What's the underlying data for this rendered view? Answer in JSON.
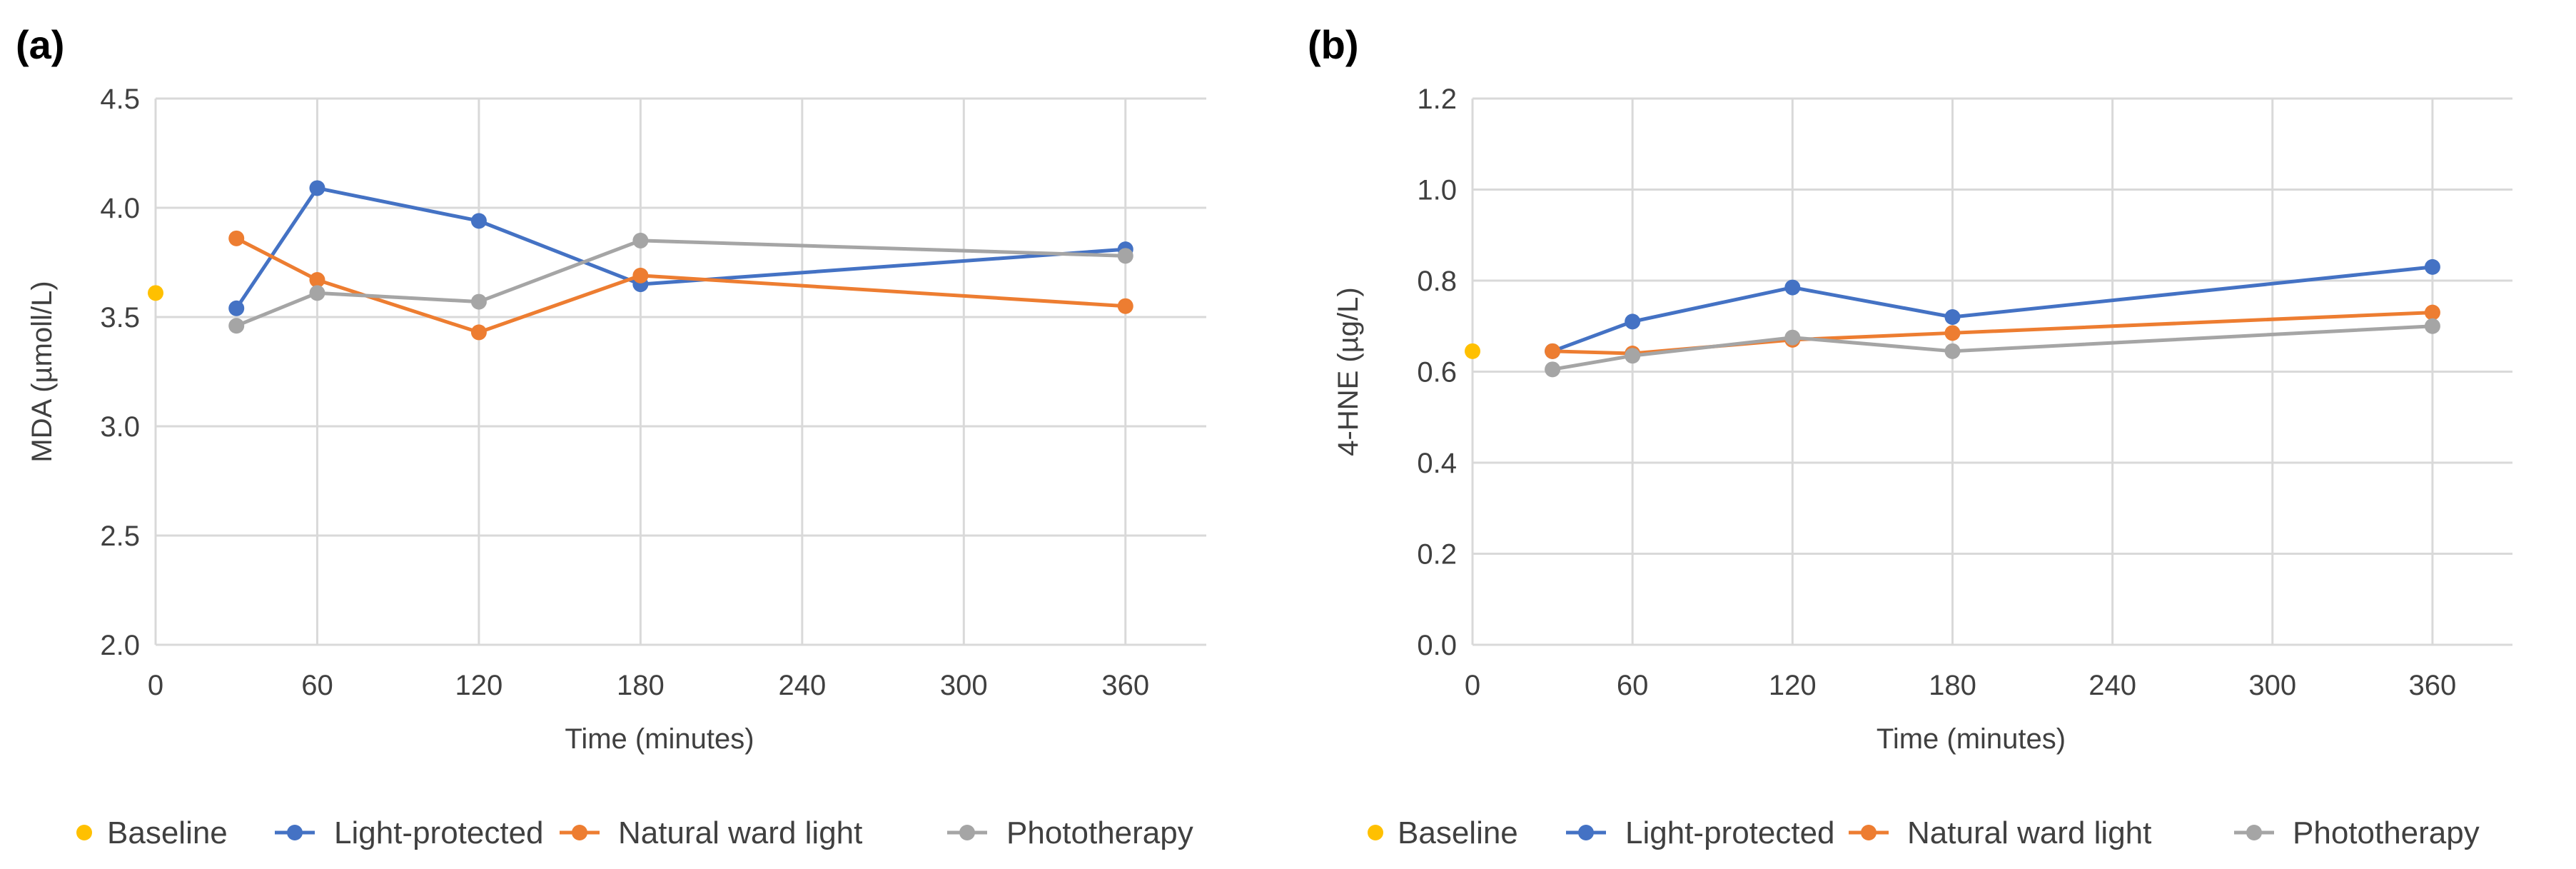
{
  "colors": {
    "baseline": "#FFC000",
    "light_protected": "#4472C4",
    "natural_ward_light": "#ED7D31",
    "phototherapy": "#A5A5A5",
    "grid": "#D9D9D9",
    "text": "#404040"
  },
  "chart_data": [
    {
      "panel_label": "(a)",
      "type": "line",
      "xlabel": "Time (minutes)",
      "ylabel": "MDA (µmoll/L)",
      "xlim": [
        0,
        390
      ],
      "ylim": [
        2.0,
        4.5
      ],
      "xticks": [
        0,
        60,
        120,
        180,
        240,
        300,
        360
      ],
      "yticks": [
        2.0,
        2.5,
        3.0,
        3.5,
        4.0,
        4.5
      ],
      "ytick_labels": [
        "2.0",
        "2.5",
        "3.0",
        "3.5",
        "4.0",
        "4.5"
      ],
      "grid": "vertical and horizontal",
      "legend_position": "bottom",
      "series": [
        {
          "name": "Baseline",
          "color": "#FFC000",
          "marker_only": true,
          "x": [
            0
          ],
          "y": [
            3.61
          ]
        },
        {
          "name": "Light-protected",
          "color": "#4472C4",
          "x": [
            30,
            60,
            120,
            180,
            360
          ],
          "y": [
            3.54,
            4.09,
            3.94,
            3.65,
            3.81
          ]
        },
        {
          "name": "Natural ward light",
          "color": "#ED7D31",
          "x": [
            30,
            60,
            120,
            180,
            360
          ],
          "y": [
            3.86,
            3.67,
            3.43,
            3.69,
            3.55
          ]
        },
        {
          "name": "Phototherapy",
          "color": "#A5A5A5",
          "x": [
            30,
            60,
            120,
            180,
            360
          ],
          "y": [
            3.46,
            3.61,
            3.57,
            3.85,
            3.78
          ]
        }
      ]
    },
    {
      "panel_label": "(b)",
      "type": "line",
      "xlabel": "Time (minutes)",
      "ylabel": "4-HNE (µg/L)",
      "xlim": [
        0,
        390
      ],
      "ylim": [
        0.0,
        1.2
      ],
      "xticks": [
        0,
        60,
        120,
        180,
        240,
        300,
        360
      ],
      "yticks": [
        0.0,
        0.2,
        0.4,
        0.6,
        0.8,
        1.0,
        1.2
      ],
      "ytick_labels": [
        "0.0",
        "0.2",
        "0.4",
        "0.6",
        "0.8",
        "1.0",
        "1.2"
      ],
      "grid": "vertical and horizontal",
      "legend_position": "bottom",
      "series": [
        {
          "name": "Baseline",
          "color": "#FFC000",
          "marker_only": true,
          "x": [
            0
          ],
          "y": [
            0.645
          ]
        },
        {
          "name": "Light-protected",
          "color": "#4472C4",
          "x": [
            30,
            60,
            120,
            180,
            360
          ],
          "y": [
            0.645,
            0.71,
            0.785,
            0.72,
            0.83
          ]
        },
        {
          "name": "Natural ward light",
          "color": "#ED7D31",
          "x": [
            30,
            60,
            120,
            180,
            360
          ],
          "y": [
            0.645,
            0.64,
            0.67,
            0.685,
            0.73
          ]
        },
        {
          "name": "Phototherapy",
          "color": "#A5A5A5",
          "x": [
            30,
            60,
            120,
            180,
            360
          ],
          "y": [
            0.605,
            0.635,
            0.675,
            0.645,
            0.7
          ]
        }
      ]
    }
  ]
}
